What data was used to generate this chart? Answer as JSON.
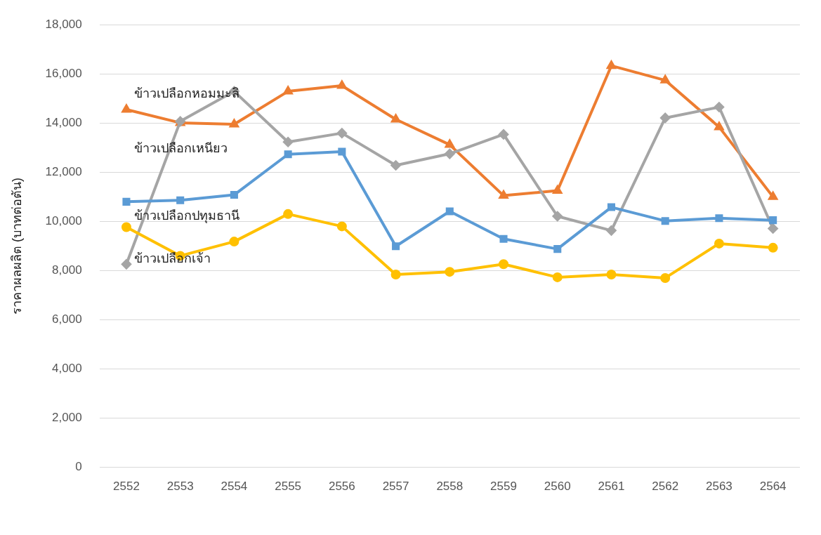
{
  "chart_data": {
    "type": "line",
    "ylabel": "ราคาผลผลิต (บาทต่อตัน)",
    "categories": [
      "2552",
      "2553",
      "2554",
      "2555",
      "2556",
      "2557",
      "2558",
      "2559",
      "2560",
      "2561",
      "2562",
      "2563",
      "2564"
    ],
    "ylim": [
      0,
      18000
    ],
    "yticks": [
      {
        "value": 0,
        "label": "0"
      },
      {
        "value": 2000,
        "label": "2,000"
      },
      {
        "value": 4000,
        "label": "4,000"
      },
      {
        "value": 6000,
        "label": "6,000"
      },
      {
        "value": 8000,
        "label": "8,000"
      },
      {
        "value": 10000,
        "label": "10,000"
      },
      {
        "value": 12000,
        "label": "12,000"
      },
      {
        "value": 14000,
        "label": "14,000"
      },
      {
        "value": 16000,
        "label": "16,000"
      },
      {
        "value": 18000,
        "label": "18,000"
      }
    ],
    "grid": "y",
    "legend": false,
    "series": [
      {
        "name": "ข้าวเปลือกหอมมะลิ",
        "color": "#ed7d31",
        "marker": "triangle",
        "values": [
          14550,
          14010,
          13950,
          15290,
          15520,
          14150,
          13120,
          11050,
          11250,
          16330,
          15740,
          13840,
          11000
        ]
      },
      {
        "name": "ข้าวเปลือกเหนียว",
        "color": "#a5a5a5",
        "marker": "diamond",
        "values": [
          8260,
          14070,
          15290,
          13230,
          13590,
          12280,
          12750,
          13540,
          10210,
          9630,
          14210,
          14650,
          9710
        ]
      },
      {
        "name": "ข้าวเปลือกปทุมธานี",
        "color": "#5b9bd5",
        "marker": "square",
        "values": [
          10800,
          10860,
          11080,
          12730,
          12840,
          8990,
          10410,
          9290,
          8880,
          10580,
          10020,
          10130,
          10050
        ]
      },
      {
        "name": "ข้าวเปลือกเจ้า",
        "color": "#ffc000",
        "marker": "circle",
        "values": [
          9770,
          8600,
          9180,
          10300,
          9800,
          7840,
          7950,
          8260,
          7730,
          7840,
          7700,
          9100,
          8930
        ]
      }
    ]
  }
}
